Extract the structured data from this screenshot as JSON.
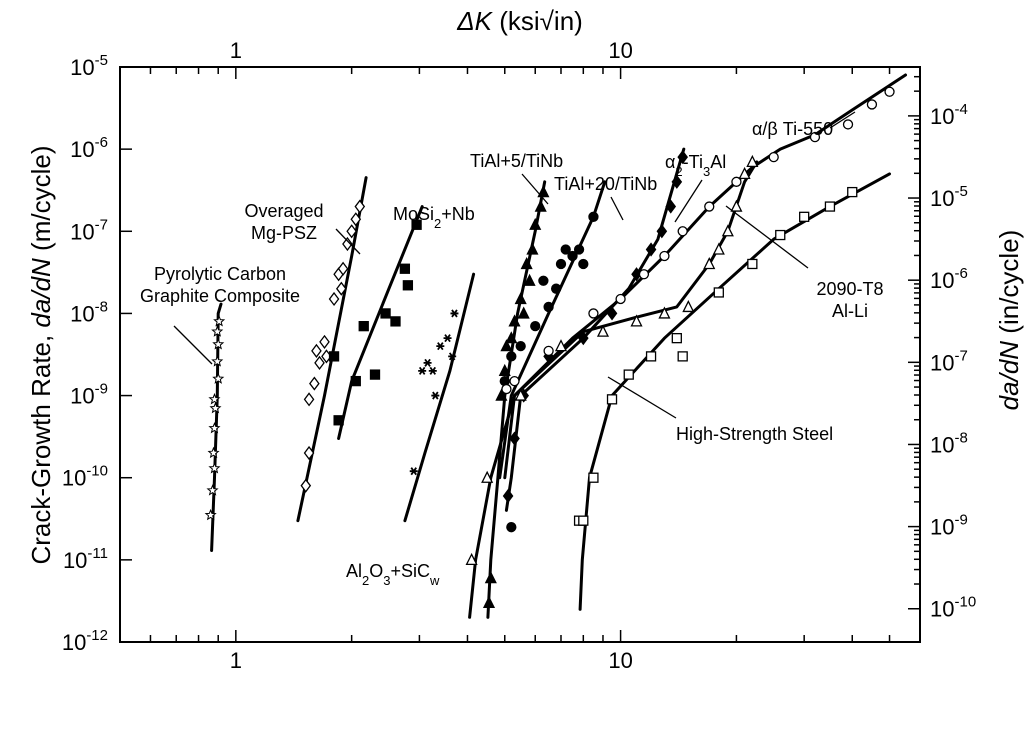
{
  "chart_data": {
    "type": "scatter",
    "title": "",
    "x_scale": "log",
    "y_scale": "log",
    "xlim": [
      0.5,
      60
    ],
    "ylim": [
      1e-12,
      1e-05
    ],
    "grid": false,
    "legend": "none",
    "top_xlabel_prefix": "ΔK",
    "top_xlabel_units": " (ksi√in)",
    "bottom_x_ticks": [
      "1",
      "10"
    ],
    "top_x_ticks": [
      "1",
      "10"
    ],
    "ylabel_left_prefix": "Crack-Growth Rate, ",
    "ylabel_left_var": "da/dN",
    "ylabel_left_units": " (m/cycle)",
    "ylabel_right_var": "da/dN",
    "ylabel_right_units": " (in/cycle)",
    "y_ticks_left": [
      {
        "base": "10",
        "exp": "-12",
        "value": 1e-12
      },
      {
        "base": "10",
        "exp": "-11",
        "value": 1e-11
      },
      {
        "base": "10",
        "exp": "-10",
        "value": 1e-10
      },
      {
        "base": "10",
        "exp": "-9",
        "value": 1e-09
      },
      {
        "base": "10",
        "exp": "-8",
        "value": 1e-08
      },
      {
        "base": "10",
        "exp": "-7",
        "value": 1e-07
      },
      {
        "base": "10",
        "exp": "-6",
        "value": 1e-06
      },
      {
        "base": "10",
        "exp": "-5",
        "value": 1e-05
      }
    ],
    "y_ticks_right": [
      {
        "base": "10",
        "exp": "-10",
        "value": 1e-10
      },
      {
        "base": "10",
        "exp": "-9",
        "value": 1e-09
      },
      {
        "base": "10",
        "exp": "-8",
        "value": 1e-08
      },
      {
        "base": "10",
        "exp": "-7",
        "value": 1e-07
      },
      {
        "base": "10",
        "exp": "-6",
        "value": 1e-06
      },
      {
        "base": "10",
        "exp": "-5",
        "value": 1e-05
      },
      {
        "base": "10",
        "exp": "-4",
        "value": 0.0001
      }
    ],
    "annotations": [
      {
        "id": "pyro",
        "lines": [
          "Pyrolytic Carbon",
          "Graphite Composite"
        ]
      },
      {
        "id": "mgpsz",
        "lines": [
          "Overaged",
          "Mg-PSZ"
        ]
      },
      {
        "id": "mosi2",
        "lines": [
          "MoSi|2|+Nb"
        ]
      },
      {
        "id": "al2o3",
        "lines": [
          "Al|2|O|3|+SiC|w"
        ]
      },
      {
        "id": "tial5",
        "lines": [
          "TiAl+5/TiNb"
        ]
      },
      {
        "id": "tial20",
        "lines": [
          "TiAl+20/TiNb"
        ]
      },
      {
        "id": "ti3al",
        "lines": [
          "α|2|-Ti|3|Al"
        ]
      },
      {
        "id": "ti550",
        "lines": [
          "α/β Ti-550"
        ]
      },
      {
        "id": "alli",
        "lines": [
          "2090-T8",
          "Al-Li"
        ]
      },
      {
        "id": "steel",
        "lines": [
          "High-Strength Steel"
        ]
      }
    ],
    "series": [
      {
        "key": "pyro",
        "marker": "star",
        "curve": [
          [
            0.865,
            1.3e-11
          ],
          [
            0.88,
            1e-10
          ],
          [
            0.895,
            1e-09
          ],
          [
            0.9,
            1e-08
          ],
          [
            0.915,
            1.3e-08
          ]
        ],
        "points": [
          [
            0.86,
            3.5e-11
          ],
          [
            0.87,
            7e-11
          ],
          [
            0.88,
            1.3e-10
          ],
          [
            0.875,
            2e-10
          ],
          [
            0.88,
            4e-10
          ],
          [
            0.885,
            7e-10
          ],
          [
            0.88,
            9e-10
          ],
          [
            0.9,
            1.6e-09
          ],
          [
            0.895,
            2.6e-09
          ],
          [
            0.9,
            4.2e-09
          ],
          [
            0.895,
            6e-09
          ],
          [
            0.905,
            8e-09
          ]
        ]
      },
      {
        "key": "mgpsz",
        "marker": "diamond",
        "curve": [
          [
            1.45,
            3e-11
          ],
          [
            1.7,
            1e-09
          ],
          [
            2.0,
            5e-08
          ],
          [
            2.18,
            4.5e-07
          ]
        ],
        "points": [
          [
            1.52,
            8e-11
          ],
          [
            1.55,
            2e-10
          ],
          [
            1.55,
            9e-10
          ],
          [
            1.6,
            1.4e-09
          ],
          [
            1.65,
            2.5e-09
          ],
          [
            1.62,
            3.5e-09
          ],
          [
            1.7,
            4.5e-09
          ],
          [
            1.72,
            3e-09
          ],
          [
            1.8,
            1.5e-08
          ],
          [
            1.85,
            3e-08
          ],
          [
            1.88,
            2e-08
          ],
          [
            1.9,
            3.5e-08
          ],
          [
            1.95,
            7e-08
          ],
          [
            2.0,
            1e-07
          ],
          [
            2.05,
            1.4e-07
          ],
          [
            2.1,
            2e-07
          ]
        ]
      },
      {
        "key": "mosi2",
        "marker": "square-filled",
        "curve": [
          [
            1.85,
            3e-10
          ],
          [
            2.0,
            1.5e-09
          ],
          [
            2.5,
            2e-08
          ],
          [
            3.05,
            2e-07
          ]
        ],
        "points": [
          [
            1.8,
            3e-09
          ],
          [
            1.85,
            5e-10
          ],
          [
            2.05,
            1.5e-09
          ],
          [
            2.15,
            7e-09
          ],
          [
            2.3,
            1.8e-09
          ],
          [
            2.45,
            1e-08
          ],
          [
            2.6,
            8e-09
          ],
          [
            2.75,
            3.5e-08
          ],
          [
            2.8,
            2.2e-08
          ],
          [
            2.95,
            1.2e-07
          ]
        ]
      },
      {
        "key": "al2o3",
        "marker": "asterisk",
        "curve": [
          [
            2.75,
            3e-11
          ],
          [
            3.1,
            2e-10
          ],
          [
            3.6,
            2e-09
          ],
          [
            4.15,
            3e-08
          ]
        ],
        "points": [
          [
            2.9,
            1.2e-10
          ],
          [
            3.05,
            2e-09
          ],
          [
            3.15,
            2.5e-09
          ],
          [
            3.25,
            2e-09
          ],
          [
            3.3,
            1e-09
          ],
          [
            3.4,
            4e-09
          ],
          [
            3.55,
            5e-09
          ],
          [
            3.65,
            3e-09
          ],
          [
            3.7,
            1e-08
          ]
        ]
      },
      {
        "key": "tial5",
        "marker": "triangle-filled",
        "curve": [
          [
            4.52,
            2e-12
          ],
          [
            4.6,
            1e-11
          ],
          [
            4.8,
            1e-10
          ],
          [
            5.0,
            1e-09
          ],
          [
            5.4,
            1e-08
          ],
          [
            6.0,
            1e-07
          ],
          [
            6.35,
            4e-07
          ]
        ],
        "points": [
          [
            4.55,
            3e-12
          ],
          [
            4.6,
            6e-12
          ],
          [
            4.9,
            1e-09
          ],
          [
            5.0,
            2e-09
          ],
          [
            5.05,
            4e-09
          ],
          [
            5.2,
            5e-09
          ],
          [
            5.3,
            8e-09
          ],
          [
            5.5,
            1.5e-08
          ],
          [
            5.7,
            4e-08
          ],
          [
            5.9,
            6e-08
          ],
          [
            6.0,
            1.2e-07
          ],
          [
            6.2,
            2e-07
          ],
          [
            6.3,
            3e-07
          ],
          [
            5.8,
            2.5e-08
          ],
          [
            5.6,
            1e-08
          ]
        ]
      },
      {
        "key": "tial20",
        "marker": "circle-filled",
        "curve": [
          [
            4.85,
            1e-10
          ],
          [
            5.2,
            1e-09
          ],
          [
            6.5,
            1e-08
          ],
          [
            8.5,
            1.5e-07
          ],
          [
            9.1,
            4e-07
          ]
        ],
        "points": [
          [
            5.0,
            1.5e-09
          ],
          [
            5.2,
            3e-09
          ],
          [
            5.5,
            4e-09
          ],
          [
            6.0,
            7e-09
          ],
          [
            6.5,
            1.2e-08
          ],
          [
            6.8,
            2e-08
          ],
          [
            7.0,
            4e-08
          ],
          [
            7.2,
            6e-08
          ],
          [
            7.5,
            5e-08
          ],
          [
            7.8,
            6e-08
          ],
          [
            8.0,
            4e-08
          ],
          [
            8.5,
            1.5e-07
          ],
          [
            6.3,
            2.5e-08
          ],
          [
            5.2,
            2.5e-11
          ]
        ]
      },
      {
        "key": "ti3al",
        "marker": "diamond-filled",
        "curve": [
          [
            5.05,
            4e-11
          ],
          [
            5.2,
            1e-10
          ],
          [
            5.5,
            1e-09
          ],
          [
            8.0,
            5e-09
          ],
          [
            10.5,
            2e-08
          ],
          [
            12.5,
            8e-08
          ],
          [
            14.6,
            1e-06
          ]
        ],
        "points": [
          [
            5.1,
            6e-11
          ],
          [
            5.3,
            3e-10
          ],
          [
            5.6,
            1e-09
          ],
          [
            6.5,
            3e-09
          ],
          [
            8.0,
            5e-09
          ],
          [
            9.5,
            1e-08
          ],
          [
            11.0,
            3e-08
          ],
          [
            12.0,
            6e-08
          ],
          [
            12.8,
            1e-07
          ],
          [
            13.5,
            2e-07
          ],
          [
            14.0,
            4e-07
          ],
          [
            14.5,
            8e-07
          ]
        ]
      },
      {
        "key": "ti550",
        "marker": "circle-open",
        "curve": [
          [
            5.0,
            1e-10
          ],
          [
            5.3,
            1e-09
          ],
          [
            7.5,
            5e-09
          ],
          [
            10.0,
            1.5e-08
          ],
          [
            13.0,
            5e-08
          ],
          [
            17.0,
            2e-07
          ],
          [
            22.0,
            6e-07
          ],
          [
            26.0,
            1e-06
          ],
          [
            32.0,
            1.5e-06
          ],
          [
            40.0,
            3e-06
          ],
          [
            55.0,
            8e-06
          ]
        ],
        "points": [
          [
            5.05,
            1.2e-09
          ],
          [
            5.3,
            1.5e-09
          ],
          [
            6.5,
            3.5e-09
          ],
          [
            8.5,
            1e-08
          ],
          [
            10.0,
            1.5e-08
          ],
          [
            11.5,
            3e-08
          ],
          [
            13.0,
            5e-08
          ],
          [
            14.5,
            1e-07
          ],
          [
            17.0,
            2e-07
          ],
          [
            20.0,
            4e-07
          ],
          [
            25.0,
            8e-07
          ],
          [
            32.0,
            1.4e-06
          ],
          [
            39.0,
            2e-06
          ],
          [
            45.0,
            3.5e-06
          ],
          [
            50.0,
            5e-06
          ]
        ]
      },
      {
        "key": "alli",
        "marker": "triangle-open",
        "curve": [
          [
            4.05,
            2e-12
          ],
          [
            4.2,
            1e-11
          ],
          [
            4.6,
            1e-10
          ],
          [
            5.3,
            1e-09
          ],
          [
            8.0,
            6e-09
          ],
          [
            11.0,
            9e-09
          ],
          [
            14.0,
            1.2e-08
          ],
          [
            17.0,
            4e-08
          ],
          [
            19.0,
            1e-07
          ],
          [
            21.0,
            4e-07
          ],
          [
            22.6,
            7e-07
          ]
        ],
        "points": [
          [
            4.1,
            1e-11
          ],
          [
            4.5,
            1e-10
          ],
          [
            5.5,
            1e-09
          ],
          [
            7.0,
            4e-09
          ],
          [
            9.0,
            6e-09
          ],
          [
            11.0,
            8e-09
          ],
          [
            13.0,
            1e-08
          ],
          [
            15.0,
            1.2e-08
          ],
          [
            17.0,
            4e-08
          ],
          [
            18.0,
            6e-08
          ],
          [
            19.0,
            1e-07
          ],
          [
            20.0,
            2e-07
          ],
          [
            21.0,
            5e-07
          ],
          [
            22.0,
            7e-07
          ]
        ]
      },
      {
        "key": "steel",
        "marker": "square-open",
        "curve": [
          [
            7.85,
            2.5e-12
          ],
          [
            7.95,
            1e-11
          ],
          [
            8.3,
            1e-10
          ],
          [
            9.5,
            1e-09
          ],
          [
            13.0,
            5e-09
          ],
          [
            18.0,
            2e-08
          ],
          [
            25.0,
            8e-08
          ],
          [
            35.0,
            2e-07
          ],
          [
            50.0,
            5e-07
          ]
        ],
        "points": [
          [
            7.8,
            3e-11
          ],
          [
            8.0,
            3e-11
          ],
          [
            8.5,
            1e-10
          ],
          [
            9.5,
            9e-10
          ],
          [
            10.5,
            1.8e-09
          ],
          [
            12.0,
            3e-09
          ],
          [
            14.0,
            5e-09
          ],
          [
            14.5,
            3e-09
          ],
          [
            18.0,
            1.8e-08
          ],
          [
            22.0,
            4e-08
          ],
          [
            26.0,
            9e-08
          ],
          [
            30.0,
            1.5e-07
          ],
          [
            35.0,
            2e-07
          ],
          [
            40.0,
            3e-07
          ]
        ]
      }
    ]
  }
}
